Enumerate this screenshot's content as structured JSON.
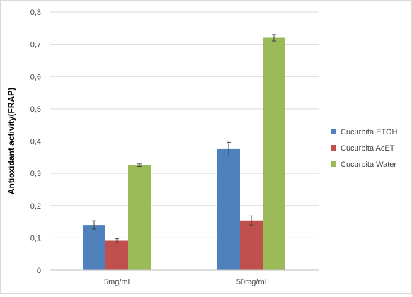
{
  "chart_data": {
    "type": "bar",
    "ylabel": "Antioxidant activity(FRAP)",
    "xlabel": "",
    "title": "",
    "ylim": [
      0,
      0.8
    ],
    "yticks": [
      0,
      0.1,
      0.2,
      0.3,
      0.4,
      0.5,
      0.6,
      0.7,
      0.8
    ],
    "ytick_labels": [
      "0",
      "0,1",
      "0,2",
      "0,3",
      "0,4",
      "0,5",
      "0,6",
      "0,7",
      "0,8"
    ],
    "categories": [
      "5mg/ml",
      "50mg/ml"
    ],
    "series": [
      {
        "name": "Cucurbita ETOH",
        "color": "#4f81bd",
        "values": [
          0.14,
          0.375
        ],
        "errors": [
          0.013,
          0.021
        ]
      },
      {
        "name": "Cucurbita AcET",
        "color": "#c0504d",
        "values": [
          0.091,
          0.154
        ],
        "errors": [
          0.007,
          0.014
        ]
      },
      {
        "name": "Cucurbita Water",
        "color": "#9bbb59",
        "values": [
          0.325,
          0.72
        ],
        "errors": [
          0.004,
          0.01
        ]
      }
    ],
    "grid": true,
    "legend_position": "right",
    "error_bars": true
  }
}
